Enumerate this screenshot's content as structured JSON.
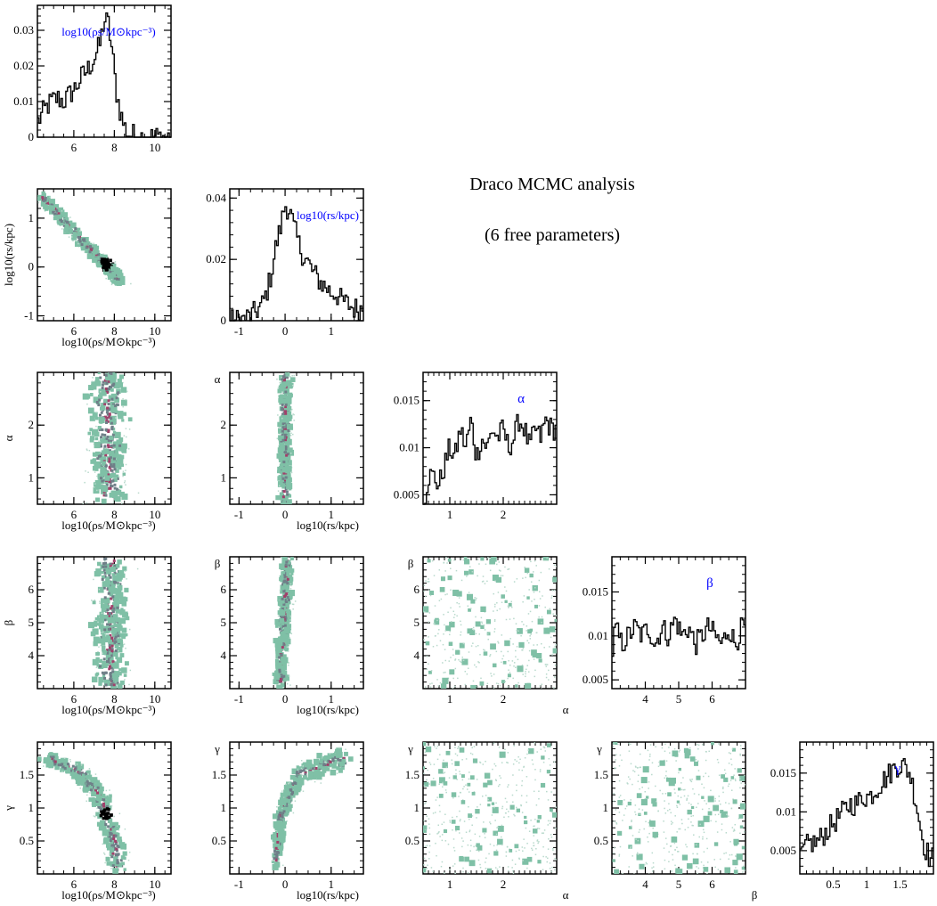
{
  "title": "Draco MCMC analysis",
  "subtitle": "(6 free parameters)",
  "colors": {
    "frame": "#000000",
    "histogram": "#000000",
    "param_label": "#0000ff",
    "contour_outer": "#7fc0a6",
    "contour_mid": "#6f7f88",
    "contour_inner": "#a0406a",
    "contour_core": "#000000"
  },
  "parameters": [
    {
      "key": "rho",
      "label_2d": "log10(ρs/M⊙kpc⁻³)",
      "hist_label": "log10(ρs/M⊙kpc⁻³)",
      "range": [
        4.2,
        10.8
      ],
      "ticks": [
        6,
        8,
        10
      ]
    },
    {
      "key": "rs",
      "label_2d": "log10(rs/kpc)",
      "hist_label": "log10(rs/kpc)",
      "range": [
        -1.2,
        1.7
      ],
      "ticks": [
        -1,
        0,
        1
      ]
    },
    {
      "key": "alpha",
      "label_2d": "α",
      "hist_label": "α",
      "range": [
        0.5,
        3.0
      ],
      "ticks": [
        1,
        2
      ]
    },
    {
      "key": "beta",
      "label_2d": "β",
      "hist_label": "β",
      "range": [
        3.0,
        7.0
      ],
      "ticks": [
        4,
        5,
        6
      ]
    },
    {
      "key": "gamma",
      "label_2d": "γ",
      "hist_label": "γ",
      "range": [
        0.0,
        2.0
      ],
      "ticks": [
        0.5,
        1,
        1.5
      ]
    }
  ],
  "chart_data": [
    {
      "type": "histogram",
      "param": "log10(ρs/M⊙kpc⁻³)",
      "xlim": [
        4.2,
        10.8
      ],
      "ylim": [
        0,
        0.037
      ],
      "yticks": [
        0,
        0.01,
        0.02,
        0.03
      ],
      "x": [
        4.3,
        4.6,
        4.9,
        5.2,
        5.5,
        5.8,
        6.1,
        6.4,
        6.7,
        7.0,
        7.3,
        7.5,
        7.7,
        7.9,
        8.1,
        8.3,
        8.5,
        8.7,
        8.9,
        9.1,
        9.4
      ],
      "y": [
        0.005,
        0.008,
        0.01,
        0.011,
        0.01,
        0.012,
        0.014,
        0.017,
        0.019,
        0.022,
        0.026,
        0.033,
        0.032,
        0.024,
        0.013,
        0.007,
        0.003,
        0.001,
        0.0007,
        0.0003,
        0.0001
      ]
    },
    {
      "type": "histogram",
      "param": "log10(rs/kpc)",
      "xlim": [
        -1.2,
        1.7
      ],
      "ylim": [
        0,
        0.043
      ],
      "yticks": [
        0,
        0.02,
        0.04
      ],
      "x": [
        -0.9,
        -0.7,
        -0.5,
        -0.4,
        -0.3,
        -0.2,
        -0.1,
        0.0,
        0.1,
        0.2,
        0.3,
        0.4,
        0.5,
        0.6,
        0.7,
        0.8,
        0.9,
        1.0,
        1.1,
        1.2,
        1.3,
        1.4,
        1.5
      ],
      "y": [
        0.0005,
        0.002,
        0.005,
        0.009,
        0.015,
        0.024,
        0.03,
        0.038,
        0.036,
        0.03,
        0.025,
        0.021,
        0.019,
        0.016,
        0.014,
        0.012,
        0.011,
        0.009,
        0.009,
        0.007,
        0.006,
        0.005,
        0.004
      ]
    },
    {
      "type": "histogram",
      "param": "α",
      "xlim": [
        0.5,
        3.0
      ],
      "ylim": [
        0.004,
        0.018
      ],
      "yticks": [
        0.005,
        0.01,
        0.015
      ],
      "x": [
        0.6,
        0.7,
        0.8,
        0.9,
        1.0,
        1.1,
        1.2,
        1.3,
        1.4,
        1.5,
        1.6,
        1.7,
        1.8,
        1.9,
        2.0,
        2.1,
        2.2,
        2.3,
        2.4,
        2.5,
        2.6,
        2.7,
        2.8,
        2.9
      ],
      "y": [
        0.007,
        0.007,
        0.006,
        0.008,
        0.01,
        0.009,
        0.012,
        0.01,
        0.013,
        0.009,
        0.011,
        0.01,
        0.012,
        0.011,
        0.012,
        0.01,
        0.011,
        0.013,
        0.012,
        0.01,
        0.012,
        0.011,
        0.013,
        0.012
      ]
    },
    {
      "type": "histogram",
      "param": "β",
      "xlim": [
        3.0,
        7.0
      ],
      "ylim": [
        0.004,
        0.019
      ],
      "yticks": [
        0.005,
        0.01,
        0.015
      ],
      "x": [
        3.1,
        3.3,
        3.5,
        3.7,
        3.9,
        4.1,
        4.3,
        4.5,
        4.7,
        4.9,
        5.1,
        5.3,
        5.5,
        5.7,
        5.9,
        6.1,
        6.3,
        6.5,
        6.7,
        6.9
      ],
      "y": [
        0.011,
        0.009,
        0.01,
        0.011,
        0.01,
        0.011,
        0.009,
        0.011,
        0.01,
        0.012,
        0.01,
        0.011,
        0.009,
        0.01,
        0.011,
        0.01,
        0.009,
        0.011,
        0.009,
        0.011
      ]
    },
    {
      "type": "histogram",
      "param": "γ",
      "xlim": [
        0.0,
        2.0
      ],
      "ylim": [
        0.002,
        0.019
      ],
      "yticks": [
        0.005,
        0.01,
        0.015
      ],
      "x": [
        0.05,
        0.15,
        0.25,
        0.35,
        0.45,
        0.55,
        0.65,
        0.75,
        0.85,
        0.95,
        1.05,
        1.15,
        1.25,
        1.35,
        1.45,
        1.55,
        1.65,
        1.75,
        1.85,
        1.95
      ],
      "y": [
        0.005,
        0.006,
        0.006,
        0.007,
        0.008,
        0.009,
        0.01,
        0.011,
        0.011,
        0.012,
        0.012,
        0.013,
        0.014,
        0.015,
        0.016,
        0.016,
        0.015,
        0.011,
        0.006,
        0.004
      ]
    },
    {
      "type": "heatmap",
      "x": "log10(ρs/M⊙kpc⁻³)",
      "y": "log10(rs/kpc)",
      "xlim": [
        4.2,
        10.8
      ],
      "ylim": [
        -1.1,
        1.6
      ],
      "ridge": [
        [
          4.4,
          1.45
        ],
        [
          5.5,
          0.95
        ],
        [
          6.5,
          0.5
        ],
        [
          7.3,
          0.15
        ],
        [
          7.8,
          -0.05
        ],
        [
          8.3,
          -0.3
        ]
      ],
      "spread": 0.18,
      "core": [
        7.6,
        0.05
      ]
    },
    {
      "type": "heatmap",
      "x": "log10(ρs/M⊙kpc⁻³)",
      "y": "α",
      "xlim": [
        4.2,
        10.8
      ],
      "ylim": [
        0.5,
        3.0
      ],
      "ridge": [
        [
          7.7,
          0.6
        ],
        [
          7.7,
          2.9
        ]
      ],
      "spread": 0.45
    },
    {
      "type": "heatmap",
      "x": "log10(rs/kpc)",
      "y": "α",
      "xlim": [
        -1.2,
        1.7
      ],
      "ylim": [
        0.5,
        3.0
      ],
      "ridge": [
        [
          0.0,
          0.6
        ],
        [
          0.0,
          2.9
        ]
      ],
      "spread": 0.12
    },
    {
      "type": "heatmap",
      "x": "log10(ρs/M⊙kpc⁻³)",
      "y": "β",
      "xlim": [
        4.2,
        10.8
      ],
      "ylim": [
        3.0,
        7.0
      ],
      "ridge": [
        [
          7.8,
          3.1
        ],
        [
          7.8,
          6.9
        ]
      ],
      "spread": 0.4
    },
    {
      "type": "heatmap",
      "x": "log10(rs/kpc)",
      "y": "β",
      "xlim": [
        -1.2,
        1.7
      ],
      "ylim": [
        3.0,
        7.0
      ],
      "ridge": [
        [
          -0.1,
          3.2
        ],
        [
          0.05,
          6.9
        ]
      ],
      "spread": 0.12
    },
    {
      "type": "heatmap",
      "x": "α",
      "y": "β",
      "xlim": [
        0.5,
        3.0
      ],
      "ylim": [
        3.0,
        7.0
      ],
      "uniform": true
    },
    {
      "type": "heatmap",
      "x": "log10(ρs/M⊙kpc⁻³)",
      "y": "γ",
      "xlim": [
        4.2,
        10.8
      ],
      "ylim": [
        0.0,
        2.0
      ],
      "ridge": [
        [
          4.8,
          1.75
        ],
        [
          6.3,
          1.55
        ],
        [
          7.3,
          1.15
        ],
        [
          7.9,
          0.6
        ],
        [
          8.2,
          0.1
        ]
      ],
      "spread": 0.25,
      "core": [
        7.6,
        0.9
      ]
    },
    {
      "type": "heatmap",
      "x": "log10(rs/kpc)",
      "y": "γ",
      "xlim": [
        -1.2,
        1.7
      ],
      "ylim": [
        0.0,
        2.0
      ],
      "ridge": [
        [
          -0.2,
          0.2
        ],
        [
          -0.1,
          0.9
        ],
        [
          0.3,
          1.5
        ],
        [
          1.3,
          1.75
        ]
      ],
      "spread": 0.1
    },
    {
      "type": "heatmap",
      "x": "α",
      "y": "γ",
      "xlim": [
        0.5,
        3.0
      ],
      "ylim": [
        0.0,
        2.0
      ],
      "uniform": true
    },
    {
      "type": "heatmap",
      "x": "β",
      "y": "γ",
      "xlim": [
        3.0,
        7.0
      ],
      "ylim": [
        0.0,
        2.0
      ],
      "uniform": true
    }
  ]
}
